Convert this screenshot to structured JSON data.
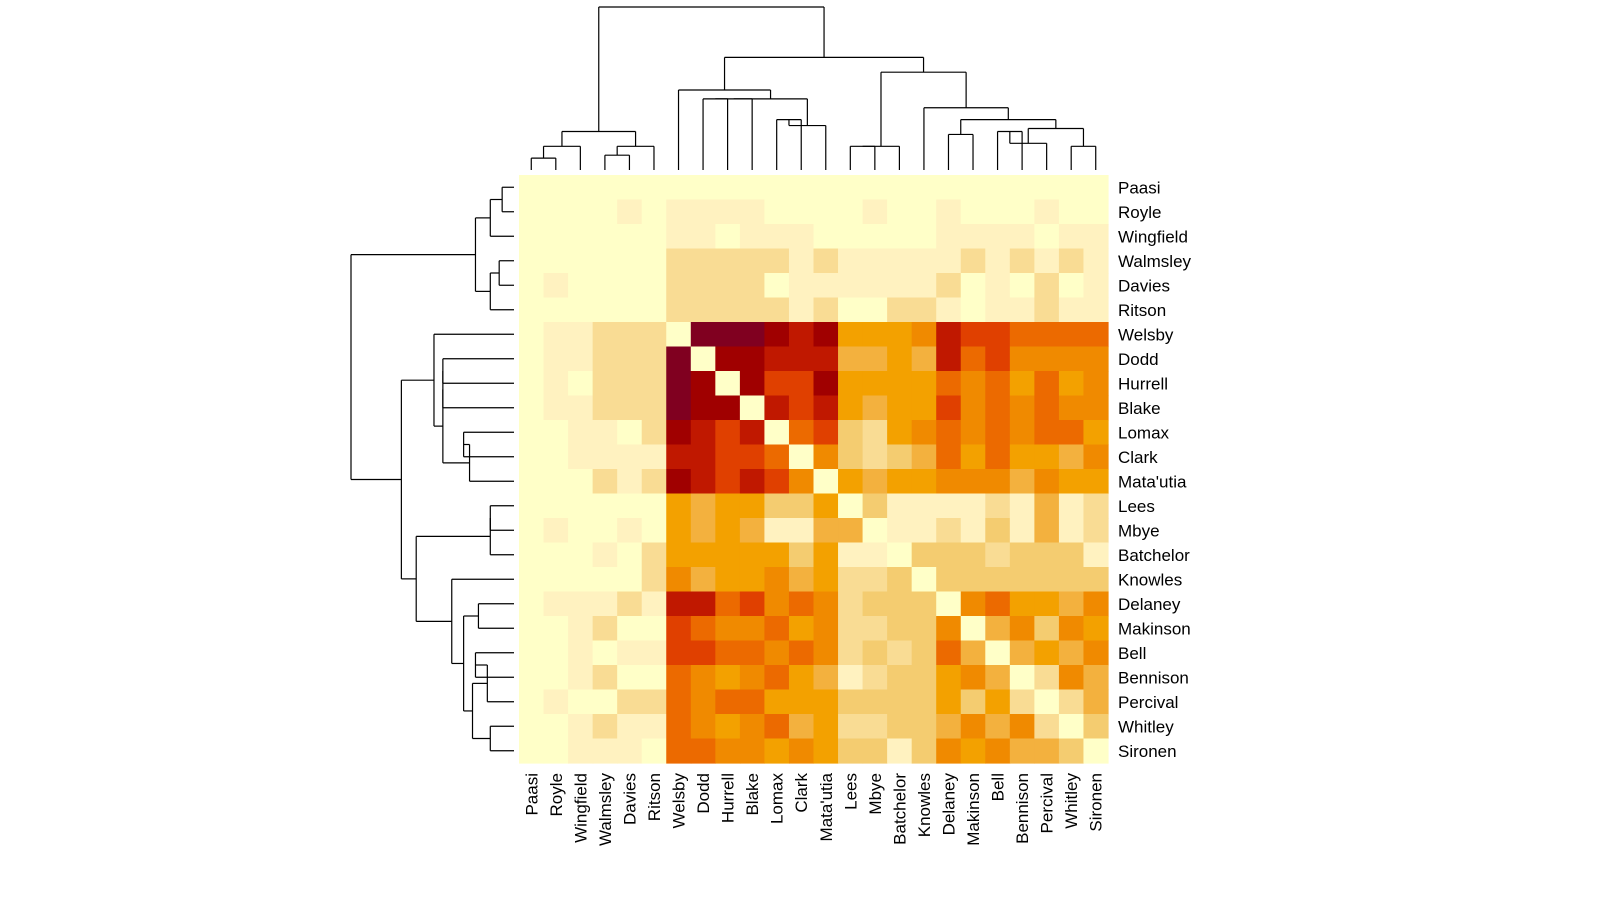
{
  "chart_data": {
    "type": "heatmap",
    "title": "",
    "xlabel": "",
    "ylabel": "",
    "labels": [
      "Paasi",
      "Royle",
      "Wingfield",
      "Walmsley",
      "Davies",
      "Ritson",
      "Welsby",
      "Dodd",
      "Hurrell",
      "Blake",
      "Lomax",
      "Clark",
      "Mata'utia",
      "Lees",
      "Mbye",
      "Batchelor",
      "Knowles",
      "Delaney",
      "Makinson",
      "Bell",
      "Bennison",
      "Percival",
      "Whitley",
      "Sironen"
    ],
    "color_scale": [
      "#FFFFC8",
      "#FFF2C0",
      "#F9DC94",
      "#F4CC70",
      "#F3B13E",
      "#F3A100",
      "#F08A00",
      "#EC6A00",
      "#E04000",
      "#C01800",
      "#A00000",
      "#800020"
    ],
    "matrix": [
      [
        0,
        0,
        0,
        0,
        0,
        0,
        0,
        0,
        0,
        0,
        0,
        0,
        0,
        0,
        0,
        0,
        0,
        0,
        0,
        0,
        0,
        0,
        0,
        0
      ],
      [
        0,
        0,
        0,
        0,
        1,
        0,
        1,
        1,
        1,
        1,
        0,
        0,
        0,
        0,
        1,
        0,
        0,
        1,
        0,
        0,
        0,
        1,
        0,
        0
      ],
      [
        0,
        0,
        0,
        0,
        0,
        0,
        1,
        1,
        0,
        1,
        1,
        1,
        0,
        0,
        0,
        0,
        0,
        1,
        1,
        1,
        1,
        0,
        1,
        1
      ],
      [
        0,
        0,
        0,
        0,
        0,
        0,
        2,
        2,
        2,
        2,
        2,
        1,
        2,
        1,
        1,
        1,
        1,
        1,
        2,
        1,
        2,
        1,
        2,
        1
      ],
      [
        0,
        1,
        0,
        0,
        0,
        0,
        2,
        2,
        2,
        2,
        0,
        1,
        1,
        1,
        1,
        1,
        1,
        2,
        0,
        1,
        0,
        2,
        0,
        1
      ],
      [
        0,
        0,
        0,
        0,
        0,
        0,
        2,
        2,
        2,
        2,
        2,
        1,
        2,
        0,
        0,
        2,
        2,
        1,
        0,
        1,
        1,
        2,
        1,
        1
      ],
      [
        0,
        1,
        1,
        2,
        2,
        2,
        0,
        11,
        11,
        11,
        10,
        9,
        10,
        5,
        5,
        5,
        6,
        9,
        8,
        8,
        7,
        7,
        7,
        7
      ],
      [
        0,
        1,
        1,
        2,
        2,
        2,
        11,
        0,
        10,
        10,
        9,
        9,
        9,
        4,
        4,
        5,
        4,
        9,
        7,
        8,
        6,
        6,
        6,
        6
      ],
      [
        0,
        1,
        0,
        2,
        2,
        2,
        11,
        10,
        0,
        10,
        8,
        8,
        10,
        5,
        5,
        5,
        5,
        7,
        6,
        7,
        5,
        7,
        5,
        6
      ],
      [
        0,
        1,
        1,
        2,
        2,
        2,
        11,
        10,
        10,
        0,
        9,
        8,
        9,
        5,
        4,
        5,
        5,
        8,
        6,
        7,
        6,
        7,
        6,
        6
      ],
      [
        0,
        0,
        1,
        1,
        0,
        2,
        10,
        9,
        8,
        9,
        0,
        7,
        8,
        3,
        2,
        5,
        6,
        7,
        6,
        7,
        6,
        7,
        7,
        5
      ],
      [
        0,
        0,
        1,
        1,
        1,
        1,
        9,
        9,
        8,
        8,
        7,
        0,
        6,
        3,
        2,
        3,
        4,
        7,
        5,
        7,
        5,
        5,
        4,
        6
      ],
      [
        0,
        0,
        0,
        2,
        1,
        2,
        10,
        9,
        8,
        9,
        8,
        6,
        0,
        5,
        4,
        5,
        5,
        6,
        6,
        6,
        4,
        6,
        5,
        5
      ],
      [
        0,
        0,
        0,
        0,
        0,
        0,
        5,
        4,
        5,
        5,
        3,
        3,
        5,
        0,
        3,
        1,
        1,
        1,
        1,
        2,
        1,
        4,
        1,
        2
      ],
      [
        0,
        1,
        0,
        0,
        1,
        0,
        5,
        4,
        5,
        4,
        1,
        1,
        4,
        4,
        0,
        1,
        1,
        2,
        1,
        3,
        1,
        4,
        1,
        2
      ],
      [
        0,
        0,
        0,
        1,
        0,
        2,
        5,
        5,
        5,
        5,
        5,
        3,
        5,
        1,
        1,
        0,
        3,
        3,
        3,
        2,
        3,
        3,
        3,
        1
      ],
      [
        0,
        0,
        0,
        0,
        0,
        2,
        6,
        4,
        5,
        5,
        6,
        4,
        5,
        2,
        2,
        3,
        0,
        3,
        3,
        3,
        3,
        3,
        3,
        3
      ],
      [
        0,
        1,
        1,
        1,
        2,
        1,
        9,
        9,
        7,
        8,
        6,
        7,
        6,
        2,
        3,
        3,
        3,
        0,
        6,
        7,
        5,
        5,
        4,
        6
      ],
      [
        0,
        0,
        1,
        2,
        0,
        0,
        8,
        7,
        6,
        6,
        7,
        5,
        6,
        2,
        2,
        3,
        3,
        6,
        0,
        4,
        6,
        3,
        6,
        5
      ],
      [
        0,
        0,
        1,
        0,
        1,
        1,
        8,
        8,
        7,
        7,
        6,
        7,
        6,
        2,
        3,
        2,
        3,
        7,
        4,
        0,
        4,
        5,
        4,
        6
      ],
      [
        0,
        0,
        1,
        2,
        0,
        0,
        7,
        6,
        5,
        6,
        7,
        5,
        4,
        1,
        2,
        3,
        3,
        5,
        6,
        4,
        0,
        2,
        6,
        4
      ],
      [
        0,
        1,
        0,
        0,
        2,
        2,
        7,
        6,
        7,
        7,
        5,
        5,
        5,
        3,
        3,
        3,
        3,
        5,
        3,
        5,
        2,
        0,
        2,
        4
      ],
      [
        0,
        0,
        1,
        2,
        1,
        1,
        7,
        6,
        5,
        6,
        7,
        4,
        5,
        2,
        2,
        3,
        3,
        4,
        6,
        4,
        6,
        2,
        0,
        3
      ],
      [
        0,
        0,
        1,
        1,
        1,
        0,
        7,
        7,
        6,
        6,
        5,
        6,
        5,
        3,
        3,
        1,
        3,
        6,
        5,
        6,
        4,
        4,
        3,
        0
      ]
    ],
    "dendrogram": [
      [
        0,
        1,
        0.8
      ],
      [
        3,
        4,
        1.0
      ],
      [
        2,
        24,
        1.6
      ],
      [
        25,
        5,
        1.6
      ],
      [
        26,
        27,
        2.6
      ],
      [
        7,
        8,
        4.8
      ],
      [
        29,
        9,
        4.8
      ],
      [
        10,
        11,
        3.4
      ],
      [
        12,
        31,
        3.0
      ],
      [
        30,
        32,
        4.8
      ],
      [
        6,
        33,
        5.4
      ],
      [
        13,
        14,
        1.6
      ],
      [
        35,
        15,
        1.6
      ],
      [
        17,
        18,
        2.4
      ],
      [
        19,
        20,
        2.6
      ],
      [
        38,
        21,
        1.8
      ],
      [
        22,
        23,
        1.6
      ],
      [
        40,
        39,
        2.8
      ],
      [
        41,
        37,
        3.4
      ],
      [
        16,
        42,
        4.2
      ],
      [
        43,
        36,
        6.6
      ],
      [
        34,
        44,
        7.6
      ],
      [
        28,
        45,
        11.0
      ]
    ],
    "grid": false,
    "legend": "none"
  }
}
